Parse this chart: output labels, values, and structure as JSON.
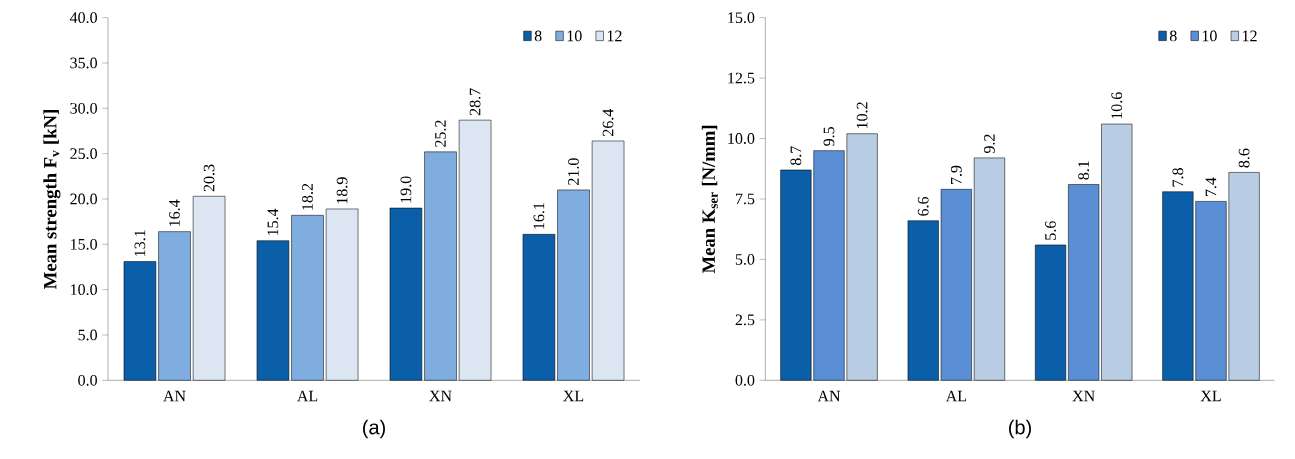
{
  "chart_data": [
    {
      "type": "bar",
      "ylabel": "Mean strength F$_{v}$ [kN]",
      "categories": [
        "AN",
        "AL",
        "XN",
        "XL"
      ],
      "series": [
        {
          "name": "8",
          "color": "#0b5ea8",
          "values": [
            13.1,
            15.4,
            19.0,
            16.1
          ],
          "value_labels": [
            "13.1",
            "15.4",
            "19.0",
            "16.1"
          ]
        },
        {
          "name": "10",
          "color": "#80ade0",
          "values": [
            16.4,
            18.2,
            25.2,
            21.0
          ],
          "value_labels": [
            "16.4",
            "18.2",
            "25.2",
            "21.0"
          ]
        },
        {
          "name": "12",
          "color": "#dce6f2",
          "values": [
            20.3,
            18.9,
            28.7,
            26.4
          ],
          "value_labels": [
            "20.3",
            "18.9",
            "28.7",
            "26.4"
          ]
        }
      ],
      "ylim": [
        0,
        40
      ],
      "yticks": [
        {
          "value": 0,
          "label": "0.0"
        },
        {
          "value": 5,
          "label": "5.0"
        },
        {
          "value": 10,
          "label": "10.0"
        },
        {
          "value": 15,
          "label": "15.0"
        },
        {
          "value": 20,
          "label": "20.0"
        },
        {
          "value": 25,
          "label": "25.0"
        },
        {
          "value": 30,
          "label": "30.0"
        },
        {
          "value": 35,
          "label": "35.0"
        },
        {
          "value": 40,
          "label": "40.0"
        }
      ],
      "legend": "top right",
      "annotations": [
        "(a)"
      ]
    },
    {
      "type": "bar",
      "ylabel": "Mean K$_{ser}$ [N/mm]",
      "categories": [
        "AN",
        "AL",
        "XN",
        "XL"
      ],
      "series": [
        {
          "name": "8",
          "color": "#0b5ea8",
          "values": [
            8.7,
            6.6,
            5.6,
            7.8
          ],
          "value_labels": [
            "8.7",
            "6.6",
            "5.6",
            "7.8"
          ]
        },
        {
          "name": "10",
          "color": "#5a8fd5",
          "values": [
            9.5,
            7.9,
            8.1,
            7.4
          ],
          "value_labels": [
            "9.5",
            "7.9",
            "8.1",
            "7.4"
          ]
        },
        {
          "name": "12",
          "color": "#b8cce4",
          "values": [
            10.2,
            9.2,
            10.6,
            8.6
          ],
          "value_labels": [
            "10.2",
            "9.2",
            "10.6",
            "8.6"
          ]
        }
      ],
      "ylim": [
        0,
        15
      ],
      "yticks": [
        {
          "value": 0,
          "label": "0.0"
        },
        {
          "value": 2.5,
          "label": "2.5"
        },
        {
          "value": 5,
          "label": "5.0"
        },
        {
          "value": 7.5,
          "label": "7.5"
        },
        {
          "value": 10,
          "label": "10.0"
        },
        {
          "value": 12.5,
          "label": "12.5"
        },
        {
          "value": 15,
          "label": "15.0"
        }
      ],
      "legend": "top right",
      "annotations": [
        "(b)"
      ]
    }
  ]
}
